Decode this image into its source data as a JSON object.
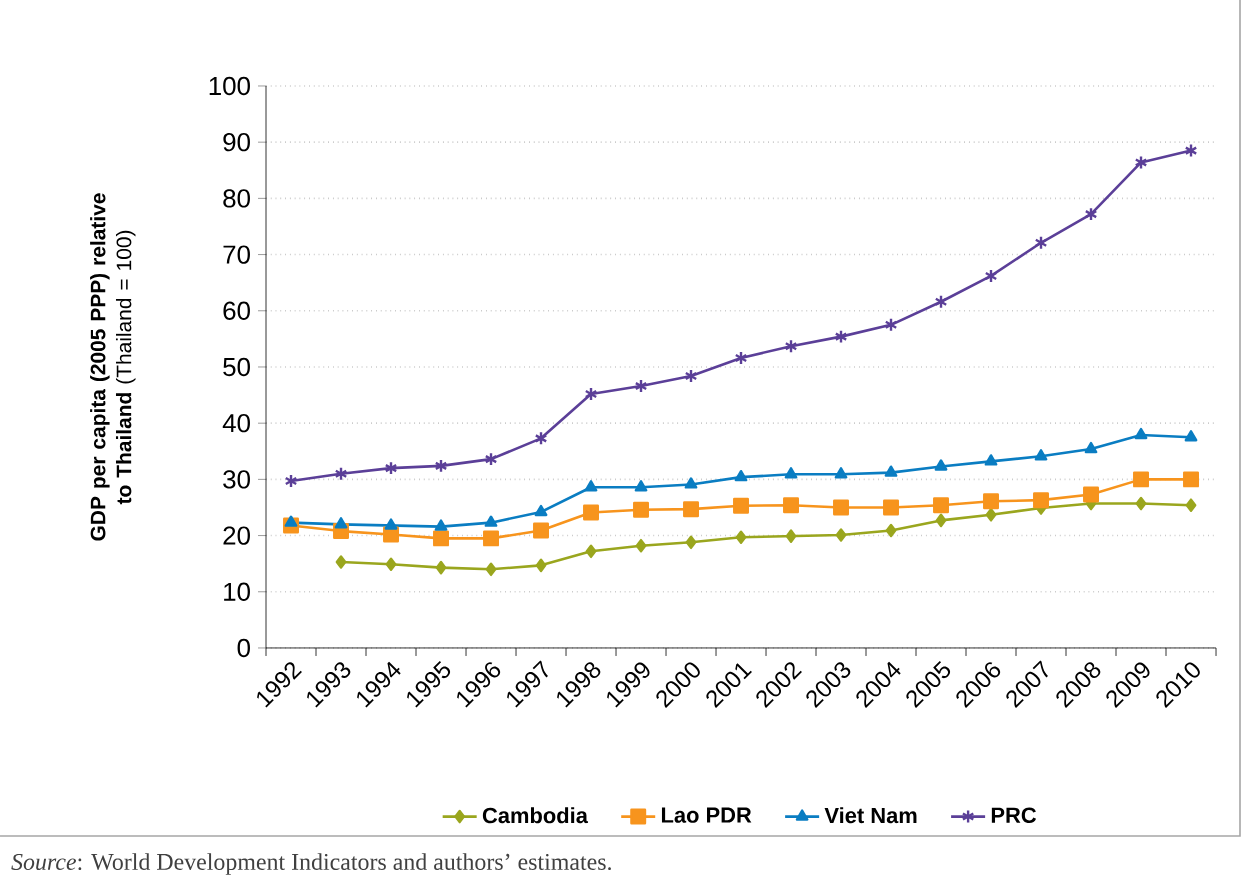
{
  "chart_data": {
    "type": "line",
    "ylabel": "**GDP per capita (2005 PPP) relative to Thailand** (Thailand = 100)",
    "categories": [
      "1992",
      "1993",
      "1994",
      "1995",
      "1996",
      "1997",
      "1998",
      "1999",
      "2000",
      "2001",
      "2002",
      "2003",
      "2004",
      "2005",
      "2006",
      "2007",
      "2008",
      "2009",
      "2010"
    ],
    "series": [
      {
        "name": "Cambodia",
        "color": "#9aa61e",
        "marker": "diamond",
        "values": [
          null,
          15.3,
          14.9,
          14.3,
          14.0,
          14.7,
          17.2,
          18.2,
          18.8,
          19.7,
          19.9,
          20.1,
          20.9,
          22.7,
          23.7,
          24.9,
          25.7,
          25.7,
          25.4
        ]
      },
      {
        "name": "Lao PDR",
        "color": "#f7941d",
        "marker": "square",
        "values": [
          21.8,
          20.8,
          20.2,
          19.5,
          19.5,
          20.9,
          24.1,
          24.6,
          24.7,
          25.3,
          25.4,
          25.0,
          25.0,
          25.4,
          26.1,
          26.3,
          27.3,
          30.0,
          30.0
        ]
      },
      {
        "name": "Viet Nam",
        "color": "#0a7dc2",
        "marker": "triangle",
        "values": [
          22.3,
          22.0,
          21.8,
          21.6,
          22.3,
          24.2,
          28.6,
          28.6,
          29.1,
          30.4,
          30.9,
          30.9,
          31.2,
          32.3,
          33.2,
          34.1,
          35.4,
          37.9,
          37.5
        ]
      },
      {
        "name": "PRC",
        "color": "#5b3f98",
        "marker": "cross",
        "values": [
          29.7,
          31.0,
          32.0,
          32.4,
          33.6,
          37.3,
          45.2,
          46.6,
          48.4,
          51.6,
          53.7,
          55.4,
          57.5,
          61.6,
          66.2,
          72.1,
          77.2,
          86.4,
          88.5
        ]
      }
    ],
    "ylim": [
      0,
      100
    ],
    "yticks": [
      0,
      10,
      20,
      30,
      40,
      50,
      60,
      70,
      80,
      90,
      100
    ],
    "grid": "y",
    "legend": "bottom",
    "line_style": "solid",
    "annotations": [
      "*Source*: World Development Indicators and authors’ estimates."
    ]
  }
}
